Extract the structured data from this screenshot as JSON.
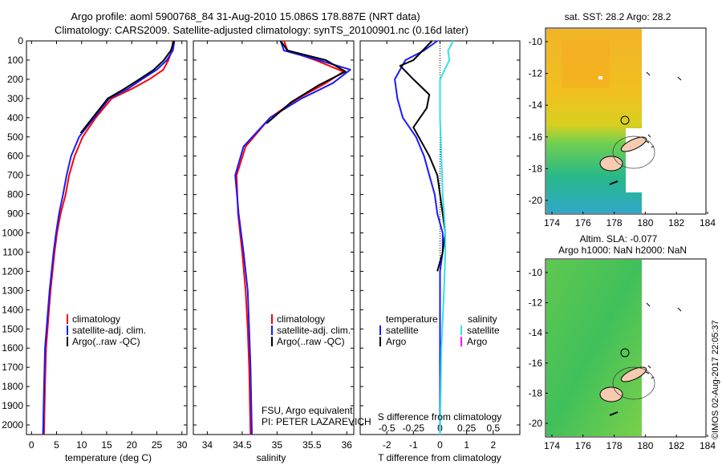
{
  "header": {
    "line1": "Argo profile: aoml 5900768_84 31-Aug-2010 15.086S 178.887E (NRT data)",
    "line2": "Climatology: CARS2009. Satellite-adjusted climatology: synTS_20100901.nc (0.16d later)"
  },
  "footer_stamp": "©IMOS 02-Aug-2017 22:05:37",
  "colors": {
    "climatology": "#ff0000",
    "satellite": "#1a1aff",
    "argo": "#000000",
    "sat_salinity": "#33e0e8",
    "argo_salinity": "#ff00ff"
  },
  "chart_data": [
    {
      "type": "line",
      "name": "temperature",
      "xlabel": "temperature (deg C)",
      "ylabel": "",
      "xlim": [
        -1,
        31
      ],
      "ylim": [
        2050,
        0
      ],
      "xticks": [
        "0",
        "5",
        "10",
        "15",
        "20",
        "25",
        "30"
      ],
      "yticks": [
        "0",
        "100",
        "200",
        "300",
        "400",
        "500",
        "600",
        "700",
        "800",
        "900",
        "1000",
        "1100",
        "1200",
        "1300",
        "1400",
        "1500",
        "1600",
        "1700",
        "1800",
        "1900",
        "2000"
      ],
      "legend": [
        "climatology",
        "satellite-adj. clim.",
        "Argo(..raw -QC)"
      ],
      "series": [
        {
          "name": "climatology",
          "color": "red",
          "x": [
            28.2,
            28.0,
            27.3,
            26.3,
            23.5,
            20.0,
            16.0,
            12.8,
            10.2,
            8.6,
            7.5,
            6.8,
            5.8,
            5.1,
            4.6,
            4.2,
            3.8,
            3.5,
            3.2,
            2.9,
            2.7,
            2.5
          ],
          "y": [
            0,
            50,
            100,
            150,
            200,
            250,
            300,
            400,
            500,
            600,
            700,
            800,
            900,
            1000,
            1100,
            1200,
            1300,
            1400,
            1500,
            1600,
            1800,
            2050
          ]
        },
        {
          "name": "satellite-adj. clim.",
          "color": "blue",
          "x": [
            28.5,
            28.2,
            27.0,
            25.0,
            22.0,
            19.2,
            15.5,
            12.5,
            9.5,
            7.9,
            7.0,
            6.3,
            5.5,
            4.9,
            4.4,
            4.0,
            3.6,
            3.3,
            3.0,
            2.7,
            2.5,
            2.3
          ],
          "y": [
            0,
            50,
            100,
            150,
            200,
            250,
            300,
            400,
            500,
            600,
            700,
            800,
            900,
            1000,
            1100,
            1200,
            1300,
            1400,
            1500,
            1600,
            1800,
            2050
          ]
        },
        {
          "name": "Argo(..raw -QC)",
          "color": "black",
          "x": [
            28.4,
            27.8,
            26.4,
            24.4,
            21.5,
            18.5,
            15.2,
            12.2,
            9.8
          ],
          "y": [
            0,
            50,
            100,
            150,
            200,
            250,
            300,
            400,
            480
          ]
        }
      ]
    },
    {
      "type": "line",
      "name": "salinity",
      "xlabel": "salinity",
      "ylabel": "",
      "xlim": [
        33.8,
        36.1
      ],
      "ylim": [
        2050,
        0
      ],
      "xticks": [
        "34",
        "34.5",
        "35",
        "35.5",
        "36"
      ],
      "legend": [
        "climatology",
        "satellite-adj. clim.",
        "Argo(..raw -QC)"
      ],
      "annotation": [
        "FSU, Argo equivalent",
        "PI: PETER LAZAREVICH"
      ],
      "series": [
        {
          "name": "climatology",
          "color": "red",
          "x": [
            35.1,
            35.15,
            35.55,
            35.95,
            35.7,
            35.3,
            34.9,
            34.55,
            34.42,
            34.44,
            34.5,
            34.55,
            34.58,
            34.6,
            34.62
          ],
          "y": [
            0,
            50,
            100,
            160,
            220,
            300,
            400,
            550,
            700,
            900,
            1100,
            1300,
            1500,
            1700,
            2050
          ]
        },
        {
          "name": "satellite-adj. clim.",
          "color": "blue",
          "x": [
            35.05,
            35.1,
            35.6,
            36.05,
            35.8,
            35.35,
            34.9,
            34.52,
            34.4,
            34.45,
            34.52,
            34.58,
            34.6,
            34.62,
            34.64
          ],
          "y": [
            0,
            50,
            100,
            150,
            220,
            300,
            400,
            550,
            700,
            900,
            1100,
            1300,
            1500,
            1700,
            2050
          ]
        },
        {
          "name": "Argo(..raw -QC)",
          "color": "black",
          "x": [
            35.05,
            35.15,
            35.7,
            35.98,
            35.6,
            35.2,
            34.85
          ],
          "y": [
            0,
            50,
            100,
            160,
            230,
            320,
            430
          ]
        }
      ]
    },
    {
      "type": "line",
      "name": "difference from climatology",
      "xlabel": "T difference from climatology",
      "xlabel_top": "S difference from climatology",
      "xlim": [
        -3,
        3
      ],
      "ylim": [
        2050,
        0
      ],
      "xticks": [
        "-2",
        "-1",
        "0",
        "1",
        "2"
      ],
      "xticks_top": [
        "-0.5",
        "-0.25",
        "0",
        "0.25",
        "0.5"
      ],
      "legend_left_title": "temperature",
      "legend_right_title": "salinity",
      "legend": [
        "satellite",
        "Argo",
        "satellite",
        "Argo"
      ],
      "series": [
        {
          "name": "temperature satellite",
          "color": "blue",
          "x": [
            -0.1,
            -0.6,
            -1.3,
            -1.7,
            -1.6,
            -1.4,
            -0.9,
            -0.6,
            -0.4,
            -0.2,
            -0.1,
            0.1,
            0.1,
            0.0,
            0.0,
            0.0
          ],
          "y": [
            0,
            50,
            100,
            200,
            300,
            400,
            500,
            600,
            700,
            800,
            900,
            1000,
            1100,
            1200,
            1500,
            2050
          ]
        },
        {
          "name": "temperature Argo",
          "color": "black",
          "x": [
            -0.3,
            -1.0,
            -1.5,
            -1.0,
            -0.4,
            -0.5,
            -1.0,
            -0.4,
            -0.1,
            0.0,
            0.2,
            0.1,
            -0.1
          ],
          "y": [
            0,
            100,
            130,
            200,
            280,
            350,
            450,
            600,
            700,
            800,
            1000,
            1100,
            1200
          ]
        },
        {
          "name": "salinity satellite",
          "color": "cyan",
          "x": [
            0.5,
            0.3,
            0.35,
            0.0,
            0.0,
            0.05,
            0.1,
            0.15,
            0.2,
            0.2,
            0.15,
            0.05,
            0.0
          ],
          "y": [
            0,
            50,
            100,
            200,
            400,
            600,
            800,
            900,
            1000,
            1100,
            1300,
            1600,
            2050
          ]
        }
      ]
    }
  ],
  "maps": {
    "sst": {
      "title": "sat. SST: 28.2 Argo: 28.2",
      "xticks": [
        "174",
        "176",
        "178",
        "180",
        "182",
        "184"
      ],
      "yticks": [
        "-10",
        "-12",
        "-14",
        "-16",
        "-18",
        "-20"
      ]
    },
    "sla": {
      "title_line1": "Altim. SLA: -0.077",
      "title_line2": "Argo h1000: NaN h2000: NaN",
      "xticks": [
        "174",
        "176",
        "178",
        "180",
        "182",
        "184"
      ],
      "yticks": [
        "-10",
        "-12",
        "-14",
        "-16",
        "-18",
        "-20"
      ]
    }
  }
}
